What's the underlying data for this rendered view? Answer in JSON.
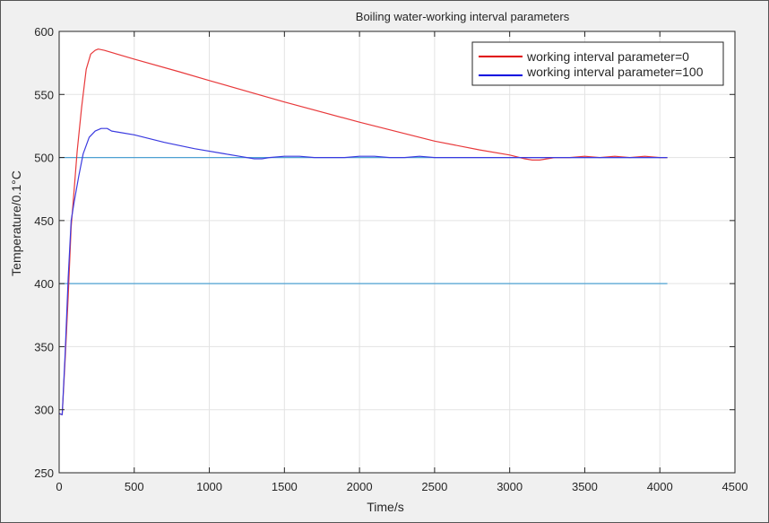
{
  "chart_data": {
    "type": "line",
    "title": "Boiling water-working interval parameters",
    "xlabel": "Time/s",
    "ylabel": "Temperature/0.1°C",
    "xlim": [
      0,
      4500
    ],
    "ylim": [
      250,
      600
    ],
    "xticks": [
      0,
      500,
      1000,
      1500,
      2000,
      2500,
      3000,
      3500,
      4000,
      4500
    ],
    "yticks": [
      250,
      300,
      350,
      400,
      450,
      500,
      550,
      600
    ],
    "grid": true,
    "legend_position": "top-right",
    "series": [
      {
        "name": "working interval parameter=0",
        "color": "#e8393b",
        "legend_color": "#e00000",
        "x": [
          0,
          20,
          40,
          60,
          80,
          100,
          120,
          150,
          180,
          210,
          240,
          260,
          300,
          500,
          800,
          1000,
          1500,
          2000,
          2500,
          2800,
          3000,
          3100,
          3150,
          3200,
          3250,
          3300,
          3400,
          3500,
          3600,
          3700,
          3800,
          3900,
          4000,
          4050
        ],
        "y": [
          297,
          296,
          340,
          390,
          445,
          475,
          505,
          540,
          570,
          582,
          585,
          586,
          585,
          578,
          568,
          561,
          544,
          528,
          513,
          506,
          502,
          499,
          498,
          498,
          499,
          500,
          500,
          501,
          500,
          501,
          500,
          501,
          500,
          500
        ]
      },
      {
        "name": "working interval parameter=100",
        "color": "#3b3be0",
        "legend_color": "#0000e0",
        "x": [
          0,
          20,
          40,
          60,
          80,
          100,
          130,
          160,
          200,
          240,
          280,
          320,
          350,
          400,
          500,
          700,
          900,
          1100,
          1200,
          1250,
          1300,
          1350,
          1400,
          1500,
          1600,
          1700,
          1800,
          1900,
          2000,
          2100,
          2200,
          2300,
          2400,
          2500,
          2600,
          2700,
          2800,
          3000,
          3500,
          4050
        ],
        "y": [
          297,
          296,
          345,
          405,
          450,
          465,
          485,
          503,
          516,
          521,
          523,
          523,
          521,
          520,
          518,
          512,
          507,
          503,
          501,
          500,
          499,
          499,
          500,
          501,
          501,
          500,
          500,
          500,
          501,
          501,
          500,
          500,
          501,
          500,
          500,
          500,
          500,
          500,
          500,
          500
        ]
      },
      {
        "name": "",
        "color": "#4ea1d3",
        "x": [
          0,
          4050
        ],
        "y": [
          500,
          500
        ]
      },
      {
        "name": "",
        "color": "#4ea1d3",
        "x": [
          0,
          4050
        ],
        "y": [
          400,
          400
        ]
      }
    ]
  }
}
